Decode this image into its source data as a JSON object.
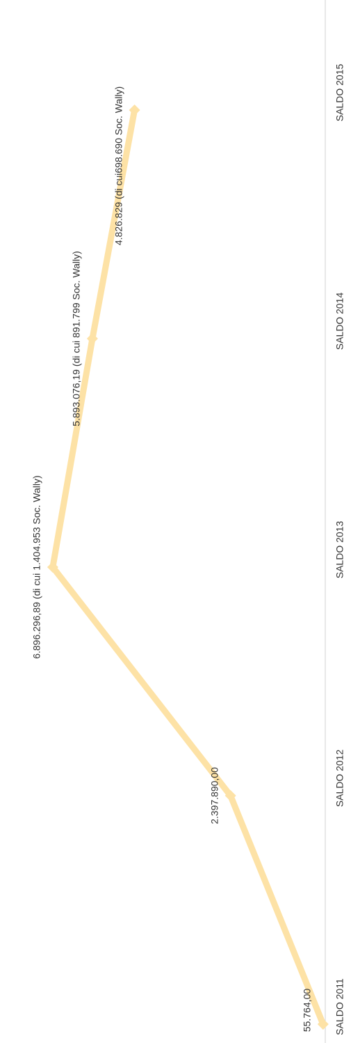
{
  "chart_data": {
    "type": "line",
    "categories": [
      "SALDO 2011",
      "SALDO 2012",
      "SALDO 2013",
      "SALDO 2014",
      "SALDO 2015"
    ],
    "series": [
      {
        "name": "Saldo",
        "color": "#fde2a6",
        "values": [
          55764,
          2397890,
          6896296.89,
          5893076.19,
          4826829
        ],
        "value_labels": [
          "55.764,00",
          "2.397.890,00",
          "6.896.296,89 (di cui 1.404.953 Soc. Wally)",
          "5.893.076,19 (di cui 891.799 Soc. Wally)",
          "4.826.829 (di cui698.690 Soc. Wally)"
        ]
      }
    ],
    "ylim": [
      0,
      7000000
    ]
  }
}
